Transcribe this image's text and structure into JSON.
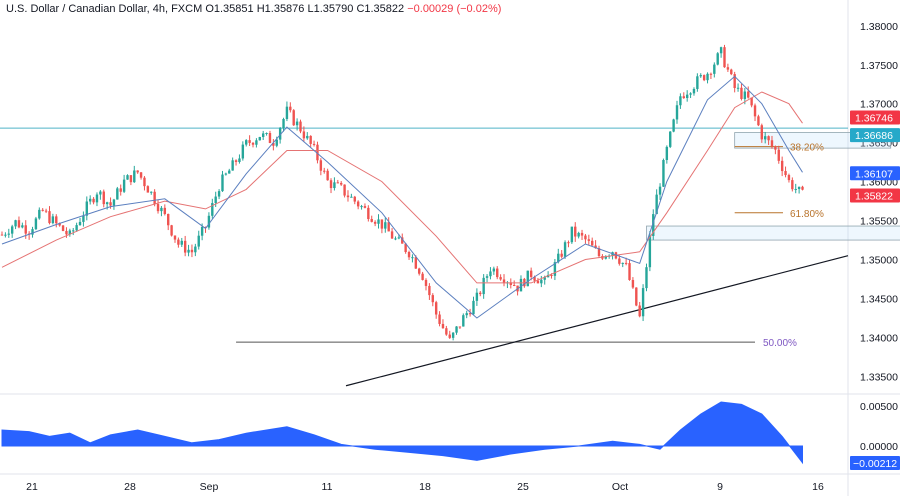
{
  "header": {
    "symbol": "U.S. Dollar / Canadian Dollar, 4h, FXCM",
    "open": "O1.35851",
    "high": "H1.35876",
    "low": "L1.35790",
    "close": "C1.35822",
    "change": "−0.00029 (−0.02%)"
  },
  "colors": {
    "up": "#26a69a",
    "down": "#ef5350",
    "candle_up_body": "#4caf50",
    "candle_down_body": "#e91e63",
    "ma_fast": "#5b7fbf",
    "ma_slow": "#e57373",
    "horizontal_line": "#4fb3c8",
    "fib": "#b8732b",
    "fib_50": "#7e57c2",
    "oscillator": "#2962ff",
    "trendline": "#131722"
  },
  "chart_data": [
    {
      "type": "candlestick",
      "y_axis": {
        "range": [
          1.333,
          1.381
        ],
        "ticks": [
          "1.38000",
          "1.37500",
          "1.37000",
          "1.36500",
          "1.36000",
          "1.35500",
          "1.35000",
          "1.34500",
          "1.34000",
          "1.33500"
        ]
      },
      "x_axis": {
        "ticks": [
          "21",
          "28",
          "Sep",
          "11",
          "18",
          "25",
          "Oct",
          "9",
          "16"
        ]
      },
      "price_labels": [
        {
          "text": "1.36746",
          "color": "#f23645"
        },
        {
          "text": "1.36686",
          "color": "#26a9c9"
        },
        {
          "text": "1.36107",
          "color": "#2962ff"
        },
        {
          "text": "1.35822",
          "color": "#f23645"
        }
      ],
      "annotations": [
        {
          "text": "38.20%",
          "level": 1.3645
        },
        {
          "text": "61.80%",
          "level": 1.356
        },
        {
          "text": "50.00%",
          "level": 1.3394
        }
      ],
      "horizontal_line_level": 1.36686,
      "series_close_path": [
        [
          0,
          1.3532
        ],
        [
          4,
          1.3548
        ],
        [
          8,
          1.3538
        ],
        [
          12,
          1.3562
        ],
        [
          16,
          1.3545
        ],
        [
          20,
          1.353
        ],
        [
          24,
          1.356
        ],
        [
          28,
          1.3588
        ],
        [
          32,
          1.357
        ],
        [
          36,
          1.36
        ],
        [
          40,
          1.3612
        ],
        [
          44,
          1.3585
        ],
        [
          48,
          1.3555
        ],
        [
          52,
          1.352
        ],
        [
          56,
          1.351
        ],
        [
          60,
          1.3542
        ],
        [
          64,
          1.3595
        ],
        [
          68,
          1.362
        ],
        [
          72,
          1.3648
        ],
        [
          76,
          1.366
        ],
        [
          80,
          1.3652
        ],
        [
          84,
          1.369
        ],
        [
          88,
          1.3668
        ],
        [
          92,
          1.364
        ],
        [
          96,
          1.36
        ],
        [
          100,
          1.359
        ],
        [
          104,
          1.3575
        ],
        [
          108,
          1.356
        ],
        [
          112,
          1.3545
        ],
        [
          116,
          1.3525
        ],
        [
          120,
          1.351
        ],
        [
          124,
          1.348
        ],
        [
          128,
          1.343
        ],
        [
          132,
          1.3395
        ],
        [
          136,
          1.3425
        ],
        [
          140,
          1.345
        ],
        [
          144,
          1.349
        ],
        [
          148,
          1.3478
        ],
        [
          152,
          1.3465
        ],
        [
          156,
          1.3482
        ],
        [
          160,
          1.347
        ],
        [
          164,
          1.35
        ],
        [
          168,
          1.3535
        ],
        [
          172,
          1.3525
        ],
        [
          176,
          1.3505
        ],
        [
          180,
          1.3512
        ],
        [
          184,
          1.349
        ],
        [
          188,
          1.3425
        ],
        [
          192,
          1.356
        ],
        [
          196,
          1.364
        ],
        [
          200,
          1.371
        ],
        [
          204,
          1.3725
        ],
        [
          208,
          1.374
        ],
        [
          212,
          1.3765
        ],
        [
          216,
          1.372
        ],
        [
          220,
          1.3705
        ],
        [
          224,
          1.366
        ],
        [
          228,
          1.364
        ],
        [
          232,
          1.36
        ],
        [
          236,
          1.3582
        ]
      ],
      "ma_fast_path": [
        [
          0,
          1.352
        ],
        [
          16,
          1.3545
        ],
        [
          32,
          1.3568
        ],
        [
          48,
          1.3578
        ],
        [
          60,
          1.354
        ],
        [
          72,
          1.361
        ],
        [
          84,
          1.367
        ],
        [
          96,
          1.3625
        ],
        [
          112,
          1.356
        ],
        [
          128,
          1.347
        ],
        [
          140,
          1.3425
        ],
        [
          156,
          1.3475
        ],
        [
          172,
          1.352
        ],
        [
          188,
          1.3495
        ],
        [
          196,
          1.36
        ],
        [
          208,
          1.3705
        ],
        [
          216,
          1.3735
        ],
        [
          224,
          1.37
        ],
        [
          232,
          1.364
        ],
        [
          236,
          1.3612
        ]
      ],
      "ma_slow_path": [
        [
          0,
          1.349
        ],
        [
          16,
          1.3525
        ],
        [
          32,
          1.3555
        ],
        [
          48,
          1.3575
        ],
        [
          60,
          1.3565
        ],
        [
          72,
          1.359
        ],
        [
          84,
          1.364
        ],
        [
          96,
          1.364
        ],
        [
          112,
          1.36
        ],
        [
          128,
          1.353
        ],
        [
          140,
          1.347
        ],
        [
          156,
          1.347
        ],
        [
          172,
          1.35
        ],
        [
          188,
          1.351
        ],
        [
          196,
          1.356
        ],
        [
          208,
          1.364
        ],
        [
          216,
          1.3695
        ],
        [
          224,
          1.3715
        ],
        [
          232,
          1.37
        ],
        [
          236,
          1.3675
        ]
      ],
      "trendline": [
        [
          118,
          1.3338
        ],
        [
          260,
          1.3505
        ]
      ],
      "boxes": [
        {
          "name": "resistance-zone",
          "x": [
            216,
            262
          ],
          "y": [
            1.3643,
            1.3663
          ]
        },
        {
          "name": "support-zone",
          "x": [
            190,
            268
          ],
          "y": [
            1.3525,
            1.3543
          ]
        }
      ]
    },
    {
      "type": "area",
      "title": "",
      "y_axis": {
        "range": [
          -0.003,
          0.006
        ],
        "ticks": [
          "0.00500",
          "0.00000"
        ]
      },
      "value_label": "−0.00212",
      "values_path": [
        [
          0,
          0.002
        ],
        [
          8,
          0.0018
        ],
        [
          14,
          0.0012
        ],
        [
          20,
          0.0016
        ],
        [
          26,
          0.0004
        ],
        [
          32,
          0.0014
        ],
        [
          40,
          0.002
        ],
        [
          48,
          0.0012
        ],
        [
          56,
          0.0004
        ],
        [
          64,
          0.0008
        ],
        [
          72,
          0.0016
        ],
        [
          84,
          0.0024
        ],
        [
          92,
          0.0014
        ],
        [
          100,
          0.0002
        ],
        [
          110,
          -0.0004
        ],
        [
          120,
          -0.0008
        ],
        [
          130,
          -0.0012
        ],
        [
          140,
          -0.0018
        ],
        [
          150,
          -0.001
        ],
        [
          160,
          -0.0004
        ],
        [
          170,
          0.0
        ],
        [
          180,
          0.0006
        ],
        [
          188,
          0.0002
        ],
        [
          194,
          -0.0004
        ],
        [
          200,
          0.002
        ],
        [
          206,
          0.004
        ],
        [
          212,
          0.0055
        ],
        [
          218,
          0.0052
        ],
        [
          224,
          0.004
        ],
        [
          230,
          0.0012
        ],
        [
          236,
          -0.0021
        ]
      ]
    }
  ]
}
